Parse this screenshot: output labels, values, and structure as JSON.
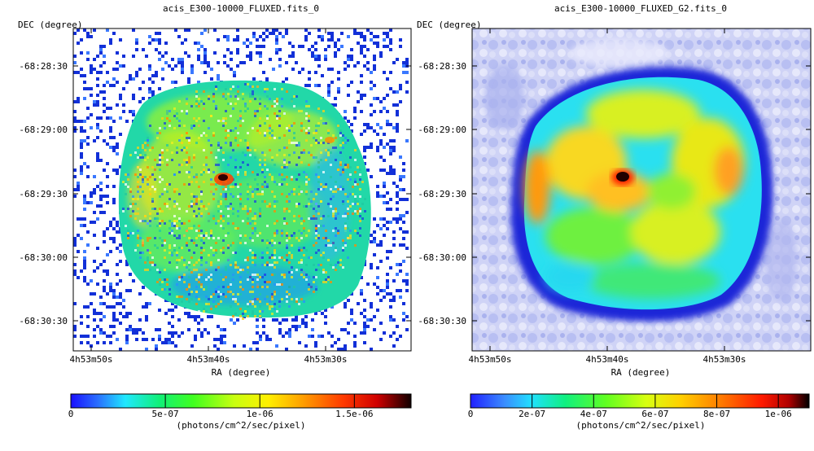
{
  "colors": {
    "pixel_blue": "#1230d8",
    "frame": "#000000",
    "background": "#ffffff"
  },
  "chart_data": [
    {
      "type": "heatmap",
      "title": "acis_E300-10000_FLUXED.fits_0",
      "xlabel": "RA (degree)",
      "ylabel": "DEC (degree)",
      "x_ticks": [
        "4h53m50s",
        "4h53m40s",
        "4h53m30s"
      ],
      "y_ticks": [
        "-68:28:30",
        "-68:29:00",
        "-68:29:30",
        "-68:30:00",
        "-68:30:30"
      ],
      "colorbar": {
        "label": "(photons/cm^2/sec/pixel)",
        "min": 0,
        "max": 1.8e-06,
        "ticks": [
          0,
          5e-07,
          1e-06,
          1.5e-06
        ],
        "tick_labels": [
          "0",
          "5e-07",
          "1e-06",
          "1.5e-06"
        ]
      },
      "grid": false,
      "style": "raw-noisy",
      "features": {
        "remnant_shape": "round-shell",
        "peak_location": "center-left",
        "background": "sparse-blue-pixels"
      }
    },
    {
      "type": "heatmap",
      "title": "acis_E300-10000_FLUXED_G2.fits_0",
      "xlabel": "RA (degree)",
      "ylabel": "DEC (degree)",
      "x_ticks": [
        "4h53m50s",
        "4h53m40s",
        "4h53m30s"
      ],
      "y_ticks": [
        "-68:28:30",
        "-68:29:00",
        "-68:29:30",
        "-68:30:00",
        "-68:30:30"
      ],
      "colorbar": {
        "label": "(photons/cm^2/sec/pixel)",
        "min": 0,
        "max": 1.1e-06,
        "ticks": [
          0,
          2e-07,
          4e-07,
          6e-07,
          8e-07,
          1e-06
        ],
        "tick_labels": [
          "0",
          "2e-07",
          "4e-07",
          "6e-07",
          "8e-07",
          "1e-06"
        ]
      },
      "grid": false,
      "style": "gaussian-smoothed",
      "features": {
        "remnant_shape": "round-shell",
        "peak_location": "center-left",
        "background": "smooth-lavender"
      }
    }
  ]
}
